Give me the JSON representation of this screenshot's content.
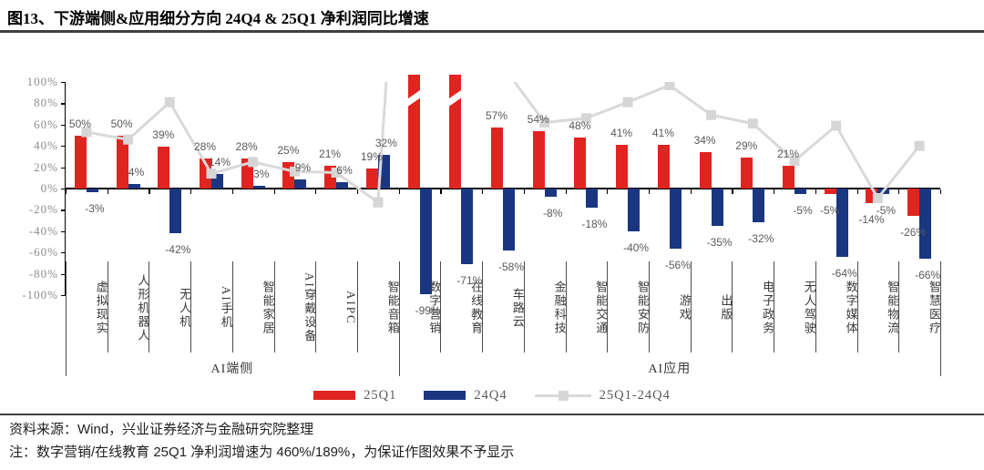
{
  "title": "图13、下游端侧&应用细分方向 24Q4 & 25Q1 净利润同比增速",
  "source_line": "资料来源：Wind，兴业证券经济与金融研究院整理",
  "note_line": "注：数字营销/在线教育 25Q1 净利润增速为 460%/189%，为保证作图效果不予显示",
  "legend": {
    "items": [
      {
        "label": "25Q1",
        "color": "#e02420",
        "type": "bar"
      },
      {
        "label": "24Q4",
        "color": "#1a3680",
        "type": "bar"
      },
      {
        "label": "25Q1-24Q4",
        "color": "#d9d9d9",
        "type": "line"
      }
    ]
  },
  "chart_data": {
    "type": "bar",
    "title": "下游端侧&应用细分方向 24Q4 & 25Q1 净利润同比增速",
    "categories": [
      "虚拟现实",
      "人形机器人",
      "无人机",
      "AI手机",
      "智能家居",
      "AI穿戴设备",
      "AIPC",
      "智能音箱",
      "数字营销",
      "在线教育",
      "车路云",
      "金融科技",
      "智能交通",
      "智能安防",
      "游戏",
      "出版",
      "电子政务",
      "无人驾驶",
      "数字媒体",
      "智能物流",
      "智慧医疗"
    ],
    "groups": [
      {
        "label": "AI端侧",
        "start": 0,
        "end": 7
      },
      {
        "label": "AI应用",
        "start": 8,
        "end": 20
      }
    ],
    "series": [
      {
        "name": "25Q1",
        "type": "bar",
        "color": "#e02420",
        "values": [
          50,
          50,
          39,
          28,
          28,
          25,
          21,
          19,
          460,
          189,
          57,
          54,
          48,
          41,
          41,
          34,
          29,
          21,
          -5,
          -14,
          -26
        ]
      },
      {
        "name": "24Q4",
        "type": "bar",
        "color": "#1a3680",
        "values": [
          -3,
          4,
          -42,
          14,
          3,
          9,
          6,
          32,
          -99,
          -71,
          -58,
          -8,
          -18,
          -40,
          -56,
          -35,
          -32,
          -5,
          -64,
          -5,
          -66
        ]
      },
      {
        "name": "25Q1-24Q4",
        "type": "line",
        "color": "#d9d9d9",
        "values": [
          53,
          46,
          81,
          14,
          25,
          16,
          15,
          -13,
          559,
          260,
          115,
          62,
          66,
          81,
          97,
          69,
          61,
          26,
          59,
          -9,
          40
        ]
      }
    ],
    "clipped_bars": {
      "series": "25Q1",
      "indices": [
        8,
        9
      ],
      "note": "460%/189% 不予显示，柱体截断"
    },
    "ylim": [
      -100,
      100
    ],
    "ytick_step": 20,
    "ylabel_suffix": "%",
    "grid": false,
    "legend_position": "bottom"
  }
}
